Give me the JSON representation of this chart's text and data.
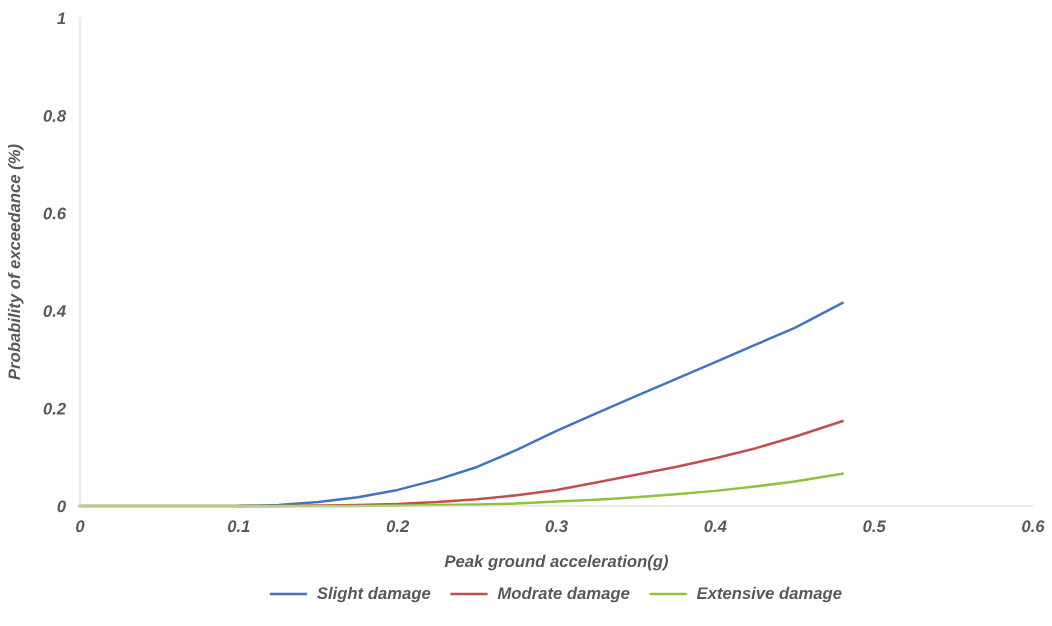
{
  "chart_data": {
    "type": "line",
    "xlabel": "Peak ground acceleration(g)",
    "ylabel": "Probability of exceedance (%)",
    "x": [
      0,
      0.05,
      0.1,
      0.125,
      0.15,
      0.175,
      0.2,
      0.225,
      0.25,
      0.275,
      0.3,
      0.325,
      0.35,
      0.375,
      0.4,
      0.425,
      0.45,
      0.48
    ],
    "series": [
      {
        "name": "Slight damage",
        "color": "#4472c4",
        "values": [
          null,
          null,
          0,
          0.002,
          0.008,
          0.018,
          0.033,
          0.054,
          0.08,
          0.115,
          0.154,
          0.19,
          0.225,
          0.26,
          0.295,
          0.33,
          0.365,
          0.416
        ]
      },
      {
        "name": "Modrate damage",
        "color": "#c0504d",
        "values": [
          0,
          0,
          0,
          0,
          0.001,
          0.002,
          0.004,
          0.008,
          0.014,
          0.022,
          0.033,
          0.048,
          0.064,
          0.08,
          0.098,
          0.118,
          0.142,
          0.174
        ]
      },
      {
        "name": "Extensive damage",
        "color": "#8fc23f",
        "values": [
          0,
          0,
          0,
          0,
          0,
          0,
          0.001,
          0.002,
          0.003,
          0.005,
          0.009,
          0.013,
          0.018,
          0.024,
          0.031,
          0.04,
          0.05,
          0.066
        ]
      }
    ],
    "xlim": [
      0,
      0.6
    ],
    "xticks": [
      0,
      0.1,
      0.2,
      0.3,
      0.4,
      0.5,
      0.6
    ],
    "ylim": [
      0,
      1
    ],
    "yticks": [
      0,
      0.2,
      0.4,
      0.6,
      0.8,
      1
    ],
    "grid": false,
    "legend": "bottom",
    "marker": "none",
    "line_style": "solid"
  }
}
